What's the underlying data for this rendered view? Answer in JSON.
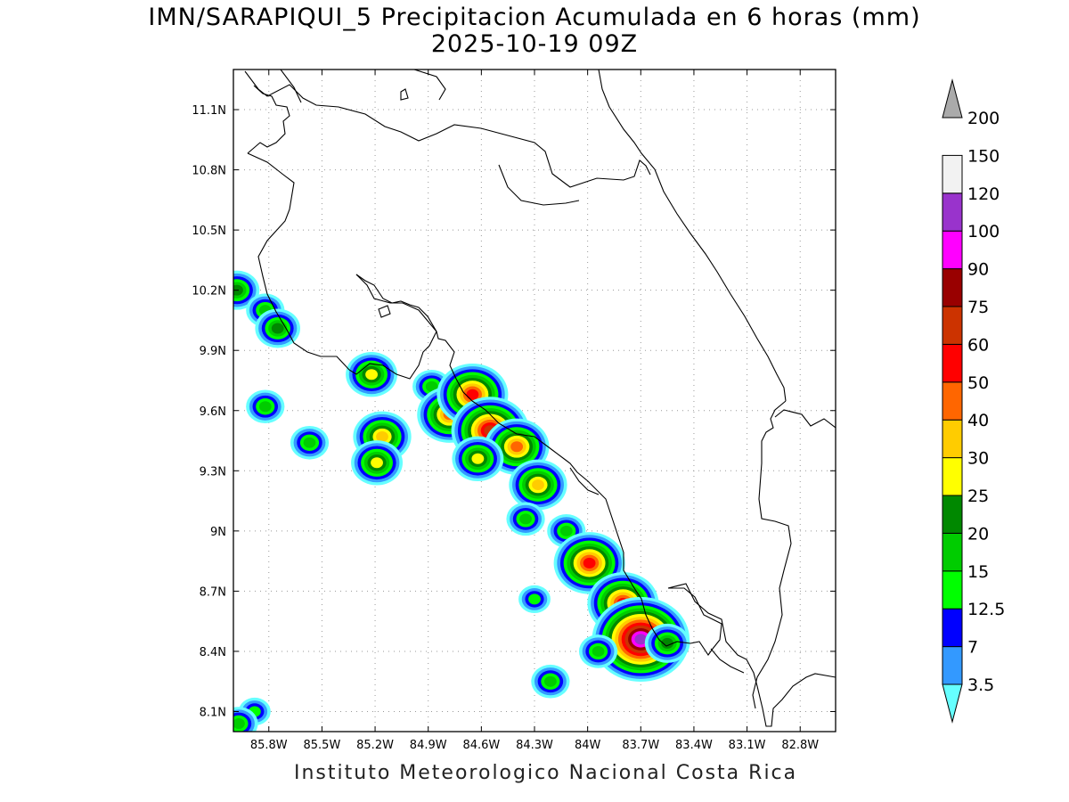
{
  "title_line1": "IMN/SARAPIQUI_5 Precipitacion Acumulada en 6 horas (mm)",
  "title_line2": "2025-10-19 09Z",
  "footer": "Instituto Meteorologico Nacional Costa Rica",
  "map": {
    "lon_range": [
      -86.0,
      -82.6
    ],
    "lat_range": [
      8.0,
      11.3
    ],
    "lon_ticks": [
      "85.8W",
      "85.5W",
      "85.2W",
      "84.9W",
      "84.6W",
      "84.3W",
      "84W",
      "83.7W",
      "83.4W",
      "83.1W",
      "82.8W"
    ],
    "lat_ticks": [
      "8.1N",
      "8.4N",
      "8.7N",
      "9N",
      "9.3N",
      "9.6N",
      "9.9N",
      "10.2N",
      "10.5N",
      "10.8N",
      "11.1N"
    ],
    "grid": "dotted"
  },
  "colorbar": {
    "labels": [
      "3.5",
      "7",
      "12.5",
      "15",
      "20",
      "25",
      "30",
      "40",
      "50",
      "60",
      "75",
      "90",
      "100",
      "120",
      "150",
      "200"
    ],
    "colors": [
      "#66ffff",
      "#3399ff",
      "#0000ff",
      "#00ff00",
      "#00cc00",
      "#008800",
      "#ffff00",
      "#ffcc00",
      "#ff6600",
      "#ff0000",
      "#cc3300",
      "#990000",
      "#ff00ff",
      "#9933cc",
      "#f2f2f2",
      "#aaaaaa"
    ]
  },
  "precip_cells": [
    {
      "lon": -85.98,
      "lat": 10.2,
      "level": 5
    },
    {
      "lon": -85.82,
      "lat": 10.1,
      "level": 4
    },
    {
      "lon": -85.75,
      "lat": 10.01,
      "level": 5
    },
    {
      "lon": -85.82,
      "lat": 9.62,
      "level": 4
    },
    {
      "lon": -85.57,
      "lat": 9.44,
      "level": 4
    },
    {
      "lon": -85.22,
      "lat": 9.78,
      "level": 6
    },
    {
      "lon": -85.16,
      "lat": 9.47,
      "level": 7
    },
    {
      "lon": -85.19,
      "lat": 9.34,
      "level": 6
    },
    {
      "lon": -84.88,
      "lat": 9.72,
      "level": 4
    },
    {
      "lon": -84.78,
      "lat": 9.58,
      "level": 8
    },
    {
      "lon": -84.65,
      "lat": 9.68,
      "level": 9
    },
    {
      "lon": -84.55,
      "lat": 9.5,
      "level": 10
    },
    {
      "lon": -84.4,
      "lat": 9.42,
      "level": 8
    },
    {
      "lon": -84.62,
      "lat": 9.36,
      "level": 6
    },
    {
      "lon": -84.28,
      "lat": 9.23,
      "level": 7
    },
    {
      "lon": -84.35,
      "lat": 9.06,
      "level": 4
    },
    {
      "lon": -84.12,
      "lat": 9.0,
      "level": 4
    },
    {
      "lon": -83.99,
      "lat": 8.84,
      "level": 9
    },
    {
      "lon": -83.8,
      "lat": 8.64,
      "level": 9
    },
    {
      "lon": -83.7,
      "lat": 8.46,
      "level": 13
    },
    {
      "lon": -83.55,
      "lat": 8.44,
      "level": 5
    },
    {
      "lon": -83.94,
      "lat": 8.4,
      "level": 4
    },
    {
      "lon": -84.3,
      "lat": 8.66,
      "level": 3
    },
    {
      "lon": -84.21,
      "lat": 8.25,
      "level": 4
    },
    {
      "lon": -85.88,
      "lat": 8.1,
      "level": 3
    },
    {
      "lon": -85.97,
      "lat": 8.04,
      "level": 4
    }
  ]
}
